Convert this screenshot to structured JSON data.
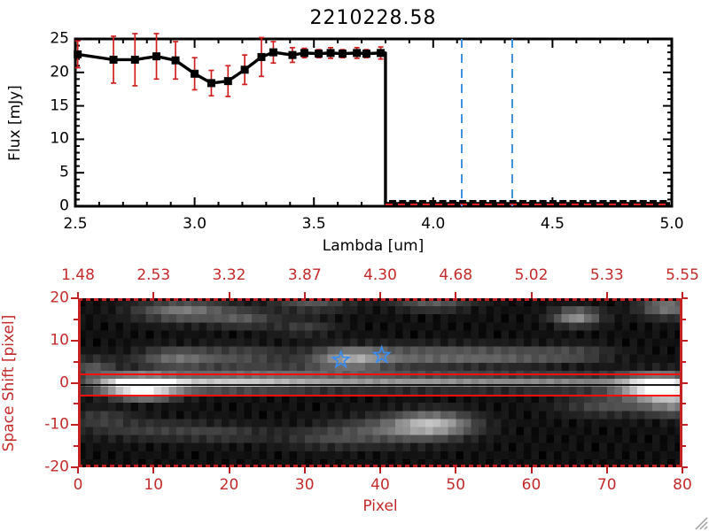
{
  "chart_data": [
    {
      "type": "line",
      "title": "2210228.58",
      "xlabel": "Lambda [um]",
      "ylabel": "Flux [mJy]",
      "xlim": [
        2.5,
        5.0
      ],
      "ylim": [
        0,
        25
      ],
      "xticks": [
        "2.5",
        "3.0",
        "3.5",
        "4.0",
        "4.5",
        "5.0"
      ],
      "xtick_values": [
        2.5,
        3.0,
        3.5,
        4.0,
        4.5,
        5.0
      ],
      "yticks": [
        "25",
        "20",
        "15",
        "10",
        "5",
        "0"
      ],
      "ytick_values": [
        25,
        20,
        15,
        10,
        5,
        0
      ],
      "grid": false,
      "line_color": "#000000",
      "marker": "filled-square",
      "error_bar_color": "#cf2020",
      "series": [
        {
          "name": "spectrum",
          "x": [
            2.51,
            2.66,
            2.75,
            2.84,
            2.92,
            3.0,
            3.07,
            3.14,
            3.21,
            3.28,
            3.33,
            3.41,
            3.46,
            3.52,
            3.57,
            3.62,
            3.68,
            3.72,
            3.78
          ],
          "y": [
            22.7,
            21.9,
            21.9,
            22.4,
            21.8,
            19.8,
            18.4,
            18.7,
            20.4,
            22.3,
            23.0,
            22.6,
            22.9,
            22.8,
            22.9,
            22.8,
            22.9,
            22.8,
            22.9
          ],
          "yerr": [
            2.0,
            3.5,
            3.9,
            3.4,
            2.8,
            2.4,
            1.9,
            2.3,
            2.2,
            2.9,
            1.6,
            1.1,
            0.7,
            0.6,
            0.8,
            0.6,
            0.8,
            0.6,
            0.9
          ]
        },
        {
          "name": "zero-level",
          "x": [
            3.83,
            3.872,
            3.914,
            3.956,
            3.998,
            4.04,
            4.082,
            4.124,
            4.166,
            4.208,
            4.25,
            4.292,
            4.334,
            4.376,
            4.418,
            4.46,
            4.502,
            4.544,
            4.586,
            4.628,
            4.67,
            4.712,
            4.754,
            4.796,
            4.838,
            4.88,
            4.922,
            4.964
          ],
          "y": [
            0,
            0,
            0,
            0,
            0,
            0,
            0,
            0,
            0,
            0,
            0,
            0,
            0,
            0,
            0,
            0,
            0,
            0,
            0,
            0,
            0,
            0,
            0,
            0,
            0,
            0,
            0,
            0
          ]
        }
      ],
      "annotations": {
        "drop_at_x": 3.8,
        "vlines": [
          4.12,
          4.33
        ],
        "vline_color": "#3f92dd",
        "vline_style": "dashed",
        "zero_dashed_line_color": "#e02020"
      }
    },
    {
      "type": "heatmap",
      "title": "",
      "xlabel": "Pixel",
      "ylabel": "Space Shift [pixel]",
      "xlim": [
        0,
        80
      ],
      "ylim": [
        -20,
        20
      ],
      "xticks": [
        "0",
        "10",
        "20",
        "30",
        "40",
        "50",
        "60",
        "70",
        "80"
      ],
      "xtick_values": [
        0,
        10,
        20,
        30,
        40,
        50,
        60,
        70,
        80
      ],
      "yticks": [
        "20",
        "10",
        "0",
        "-10",
        "-20"
      ],
      "ytick_values": [
        20,
        10,
        0,
        -10,
        -20
      ],
      "top_axis_labels": [
        "1.48",
        "2.53",
        "3.32",
        "3.87",
        "4.30",
        "4.68",
        "5.02",
        "5.33",
        "5.55"
      ],
      "top_axis_positions": [
        0,
        10,
        20,
        30,
        40,
        50,
        60,
        70,
        80
      ],
      "axis_color": "#c32222",
      "colormap": "grayscale",
      "grid_cols": 80,
      "grid_rows": 21,
      "aperture_line_color": "#fb0f0f",
      "aperture_lines_shift": [
        2,
        -3
      ],
      "dark_row_shift": -0.6,
      "stars": [
        {
          "pixel": 34.8,
          "shift": 5.4
        },
        {
          "pixel": 40.2,
          "shift": 6.5
        }
      ],
      "star_color": "#3b8cf0",
      "blobs": [
        {
          "x": 8,
          "y": -1,
          "rx": 5,
          "ry": 2.2,
          "v": 1.0
        },
        {
          "x": 9,
          "y": -3.5,
          "rx": 4,
          "ry": 1.6,
          "v": 0.35
        },
        {
          "x": 18,
          "y": -0.5,
          "rx": 12,
          "ry": 1.9,
          "v": 0.5
        },
        {
          "x": 35,
          "y": -0.2,
          "rx": 20,
          "ry": 1.7,
          "v": 0.42
        },
        {
          "x": 55,
          "y": -0.3,
          "rx": 16,
          "ry": 1.7,
          "v": 0.28
        },
        {
          "x": 67,
          "y": -0.5,
          "rx": 9,
          "ry": 1.7,
          "v": 0.22
        },
        {
          "x": 77,
          "y": -1.5,
          "rx": 5,
          "ry": 2.8,
          "v": 1.05
        },
        {
          "x": 79,
          "y": -5.5,
          "rx": 4,
          "ry": 3,
          "v": 0.4
        },
        {
          "x": 70,
          "y": -6,
          "rx": 6,
          "ry": 2.5,
          "v": 0.22
        },
        {
          "x": 28,
          "y": 2.5,
          "rx": 14,
          "ry": 1.2,
          "v": 0.2
        },
        {
          "x": 2,
          "y": 3,
          "rx": 3,
          "ry": 2.5,
          "v": 0.25
        },
        {
          "x": 13,
          "y": 5.5,
          "rx": 5,
          "ry": 2.3,
          "v": 0.35
        },
        {
          "x": 22,
          "y": 6,
          "rx": 6,
          "ry": 2.3,
          "v": 0.22
        },
        {
          "x": 36,
          "y": 5.5,
          "rx": 5,
          "ry": 2.4,
          "v": 0.5
        },
        {
          "x": 46,
          "y": 6,
          "rx": 10,
          "ry": 2.4,
          "v": 0.3
        },
        {
          "x": 58,
          "y": 6,
          "rx": 8,
          "ry": 2.1,
          "v": 0.22
        },
        {
          "x": 66,
          "y": 6.5,
          "rx": 5,
          "ry": 2,
          "v": 0.16
        },
        {
          "x": 14,
          "y": 17,
          "rx": 6,
          "ry": 2.6,
          "v": 0.4
        },
        {
          "x": 22,
          "y": 15,
          "rx": 4,
          "ry": 2,
          "v": 0.24
        },
        {
          "x": 30,
          "y": 13,
          "rx": 4,
          "ry": 2,
          "v": 0.16
        },
        {
          "x": 31,
          "y": 19,
          "rx": 5,
          "ry": 2.2,
          "v": 0.25
        },
        {
          "x": 47,
          "y": 19,
          "rx": 5,
          "ry": 2,
          "v": 0.28
        },
        {
          "x": 66,
          "y": 15.5,
          "rx": 3,
          "ry": 2,
          "v": 0.5
        },
        {
          "x": 78,
          "y": 18,
          "rx": 3.5,
          "ry": 2.5,
          "v": 0.42
        },
        {
          "x": 47,
          "y": -10.5,
          "rx": 5,
          "ry": 2.8,
          "v": 0.55
        },
        {
          "x": 42,
          "y": -12,
          "rx": 8,
          "ry": 3.2,
          "v": 0.28
        },
        {
          "x": 33,
          "y": -14,
          "rx": 6,
          "ry": 2.4,
          "v": 0.16
        },
        {
          "x": 10,
          "y": -12,
          "rx": 9,
          "ry": 2.4,
          "v": 0.16
        },
        {
          "x": 20,
          "y": -13,
          "rx": 6,
          "ry": 2,
          "v": 0.13
        },
        {
          "x": 3,
          "y": -9,
          "rx": 4,
          "ry": 2,
          "v": 0.16
        }
      ]
    }
  ],
  "window": {
    "background": "#ffffff",
    "resize_grip_color": "#a0a0a0"
  }
}
